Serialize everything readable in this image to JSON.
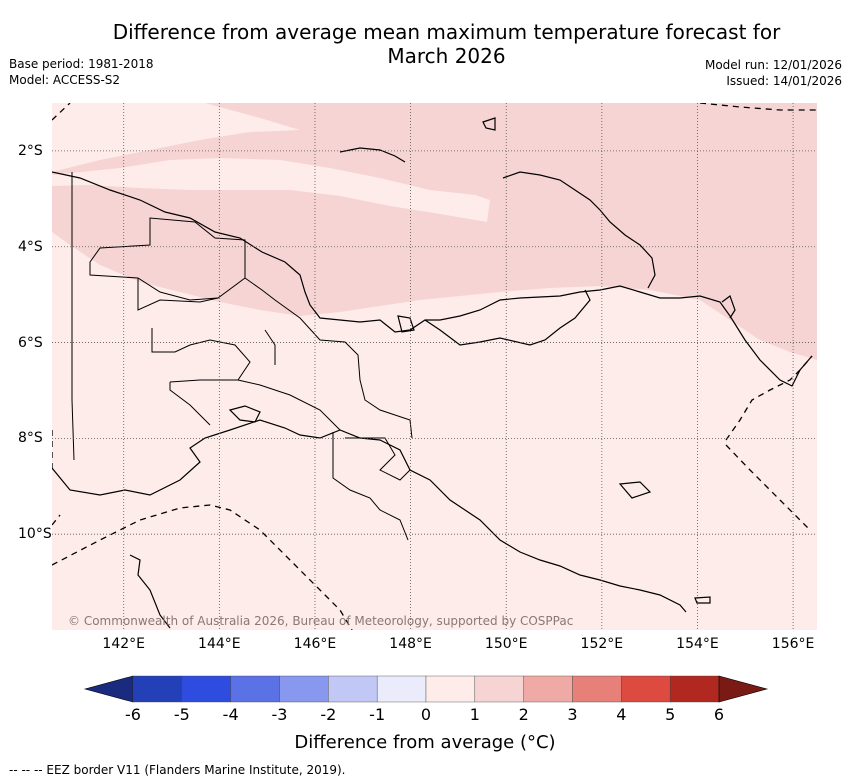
{
  "title_line1": "Difference from average mean maximum temperature forecast for",
  "title_line2": "March 2026",
  "base_period": "Base period: 1981-2018",
  "model": "Model: ACCESS-S2",
  "model_run": "Model run: 12/01/2026",
  "issued": "Issued: 14/01/2026",
  "copyright": "© Commonwealth of Australia 2026, Bureau of Meteorology, supported by COSPPac",
  "x_ticks": [
    "142°E",
    "144°E",
    "146°E",
    "148°E",
    "150°E",
    "152°E",
    "154°E",
    "156°E"
  ],
  "x_tick_values": [
    142,
    144,
    146,
    148,
    150,
    152,
    154,
    156
  ],
  "y_ticks": [
    "2°S",
    "4°S",
    "6°S",
    "8°S",
    "10°S"
  ],
  "y_tick_values": [
    -2,
    -4,
    -6,
    -8,
    -10
  ],
  "lon_range": [
    140.5,
    156.5
  ],
  "lat_range": [
    -12.0,
    -1.0
  ],
  "colorbar": {
    "label": "Difference from average (°C)",
    "ticks": [
      "-6",
      "-5",
      "-4",
      "-3",
      "-2",
      "-1",
      "0",
      "1",
      "2",
      "3",
      "4",
      "5",
      "6"
    ],
    "colors": [
      "#1a2a7e",
      "#2340b8",
      "#2e4de0",
      "#5a72e6",
      "#8898ee",
      "#c2c8f5",
      "#eaecfb",
      "#fdecea",
      "#f6d4d3",
      "#f0aaa6",
      "#e8807a",
      "#dc4a40",
      "#b02820",
      "#7a1a14"
    ]
  },
  "footer": "--  --  -- EEZ border V11 (Flanders Marine Institute, 2019).",
  "chart_data": {
    "type": "heatmap",
    "title": "Difference from average mean maximum temperature forecast for March 2026",
    "xlabel": "",
    "ylabel": "",
    "legend": "bottom colorbar",
    "grid": true,
    "regions": [
      {
        "category": "0 to 1 °C",
        "color": "#fdecea",
        "extent": "most of the domain"
      },
      {
        "category": "1 to 2 °C",
        "color": "#f6d4d3",
        "extent": "northern band and north-east"
      }
    ]
  }
}
